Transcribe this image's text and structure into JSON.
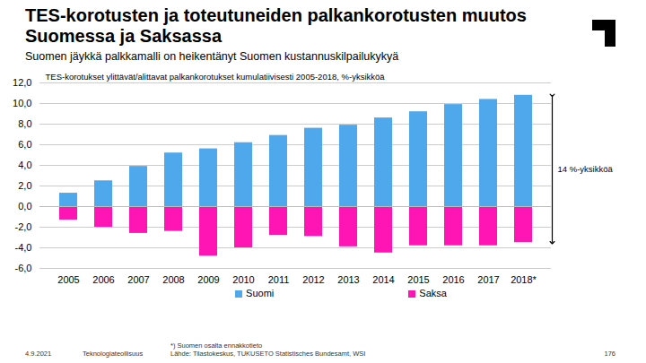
{
  "chart_data": {
    "type": "bar",
    "title": "TES-korotusten ja toteutuneiden palkankorotusten muutos Suomessa ja Saksassa",
    "subtitle": "Suomen jäykkä palkkamalli on heikentänyt Suomen kustannuskilpailukykyä",
    "annotations": [
      "TES-korotukset ylittävät/alittavat palkankorotukset kumulatiivisesti 2005-2018, %-yksikköä",
      "14 %-yksikköä"
    ],
    "categories": [
      "2005",
      "2006",
      "2007",
      "2008",
      "2009",
      "2010",
      "2011",
      "2012",
      "2013",
      "2014",
      "2015",
      "2016",
      "2017",
      "2018*"
    ],
    "series": [
      {
        "name": "Suomi",
        "color": "#4fa8ec",
        "values": [
          1.3,
          2.5,
          3.9,
          5.2,
          5.6,
          6.2,
          6.9,
          7.6,
          7.9,
          8.6,
          9.2,
          9.9,
          10.4,
          10.8
        ]
      },
      {
        "name": "Saksa",
        "color": "#ff14b4",
        "values": [
          -1.3,
          -2.0,
          -2.6,
          -2.4,
          -4.8,
          -4.0,
          -2.8,
          -2.9,
          -3.9,
          -4.5,
          -3.8,
          -3.8,
          -3.8,
          -3.5
        ]
      }
    ],
    "ylim": [
      -6,
      12
    ],
    "yticks": [
      {
        "value": -6,
        "label": "-6,0"
      },
      {
        "value": -4,
        "label": "-4,0"
      },
      {
        "value": -2,
        "label": "-2,0"
      },
      {
        "value": 0,
        "label": "0,0"
      },
      {
        "value": 2,
        "label": "2,0"
      },
      {
        "value": 4,
        "label": "4,0"
      },
      {
        "value": 6,
        "label": "6,0"
      },
      {
        "value": 8,
        "label": "8,0"
      },
      {
        "value": 10,
        "label": "10,0"
      },
      {
        "value": 12,
        "label": "12,0"
      }
    ],
    "grid": true,
    "legend": "bottom",
    "footer": {
      "date": "4.9.2021",
      "organization": "Teknologiateollisuus",
      "note": "*) Suomen osalta ennakkotieto",
      "source": "Lähde: Tilastokeskus, TUKUSETO Statistisches Bundesamt, WSI",
      "page": "176"
    }
  }
}
